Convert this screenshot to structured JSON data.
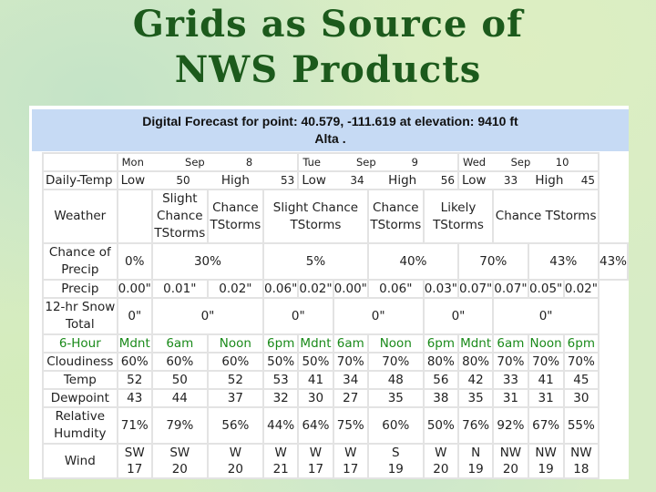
{
  "title": {
    "line1": "Grids as Source of",
    "line2": "NWS Products"
  },
  "banner": {
    "line1": "Digital Forecast for point: 40.579, -111.619 at elevation: 9410 ft",
    "line2": "Alta ."
  },
  "days": [
    {
      "dow": "Mon",
      "month": "Sep",
      "date": "8"
    },
    {
      "dow": "Tue",
      "month": "Sep",
      "date": "9"
    },
    {
      "dow": "Wed",
      "month": "Sep",
      "date": "10"
    }
  ],
  "daily_temp": {
    "label": "Daily-Temp",
    "values": [
      {
        "low_label": "Low",
        "low": "50",
        "high_label": "High",
        "high": "53"
      },
      {
        "low_label": "Low",
        "low": "34",
        "high_label": "High",
        "high": "56"
      },
      {
        "low_label": "Low",
        "low": "33",
        "high_label": "High",
        "high": "45"
      }
    ]
  },
  "weather": {
    "label": "Weather",
    "cells": [
      "",
      "Slight Chance TStorms",
      "Chance TStorms",
      "Slight Chance TStorms",
      "Chance TStorms",
      "Likely TStorms",
      "Chance TStorms"
    ]
  },
  "pop": {
    "label": "Chance of Precip",
    "cells": [
      "0%",
      "30%",
      "5%",
      "40%",
      "70%",
      "43%",
      "43%"
    ]
  },
  "precip": {
    "label": "Precip",
    "cells": [
      "0.00\"",
      "0.01\"",
      "0.02\"",
      "0.06\"",
      "0.02\"",
      "0.00\"",
      "0.06\"",
      "0.03\"",
      "0.07\"",
      "0.07\"",
      "0.05\"",
      "0.02\""
    ]
  },
  "snow": {
    "label": "12-hr Snow Total",
    "cells": [
      "0\"",
      "0\"",
      "0\"",
      "0\"",
      "0\"",
      "0\""
    ]
  },
  "hours": {
    "label": "6-Hour",
    "cells": [
      "Mdnt",
      "6am",
      "Noon",
      "6pm",
      "Mdnt",
      "6am",
      "Noon",
      "6pm",
      "Mdnt",
      "6am",
      "Noon",
      "6pm"
    ]
  },
  "cloudiness": {
    "label": "Cloudiness",
    "cells": [
      "60%",
      "60%",
      "60%",
      "50%",
      "50%",
      "70%",
      "70%",
      "80%",
      "80%",
      "70%",
      "70%",
      "70%"
    ]
  },
  "temp": {
    "label": "Temp",
    "cells": [
      "52",
      "50",
      "52",
      "53",
      "41",
      "34",
      "48",
      "56",
      "42",
      "33",
      "41",
      "45"
    ]
  },
  "dewpoint": {
    "label": "Dewpoint",
    "cells": [
      "43",
      "44",
      "37",
      "32",
      "30",
      "27",
      "35",
      "38",
      "35",
      "31",
      "31",
      "30"
    ]
  },
  "humidity": {
    "label": "Relative Humdity",
    "cells": [
      "71%",
      "79%",
      "56%",
      "44%",
      "64%",
      "75%",
      "60%",
      "50%",
      "76%",
      "92%",
      "67%",
      "55%"
    ]
  },
  "wind": {
    "label": "Wind",
    "dirs": [
      "SW",
      "SW",
      "W",
      "W",
      "W",
      "W",
      "S",
      "W",
      "N",
      "NW",
      "NW",
      "NW"
    ],
    "speeds": [
      "17",
      "20",
      "20",
      "21",
      "17",
      "17",
      "19",
      "20",
      "19",
      "20",
      "19",
      "18"
    ]
  }
}
